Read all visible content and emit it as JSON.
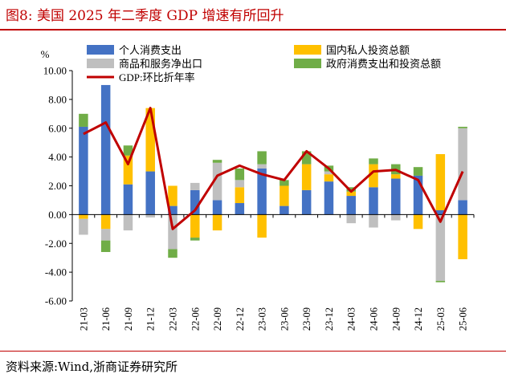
{
  "header": {
    "title": "图8:  美国 2025 年二季度 GDP 增速有所回升"
  },
  "footer": {
    "source": "资料来源:Wind,浙商证券研究所"
  },
  "colors": {
    "consumption": "#4472c4",
    "investment": "#ffc000",
    "net_exports": "#bfbfbf",
    "government": "#70ad47",
    "gdp_line": "#c00000"
  },
  "chart_data": {
    "type": "bar",
    "stacked": true,
    "ylabel": "%",
    "ylim": [
      -6,
      10
    ],
    "yticks": [
      "10.00",
      "8.00",
      "6.00",
      "4.00",
      "2.00",
      "0.00",
      "-2.00",
      "-4.00",
      "-6.00"
    ],
    "categories": [
      "21-03",
      "21-06",
      "21-09",
      "21-12",
      "22-03",
      "22-06",
      "22-09",
      "22-12",
      "23-03",
      "23-06",
      "23-09",
      "23-12",
      "24-03",
      "24-06",
      "24-09",
      "24-12",
      "25-03",
      "25-06"
    ],
    "series": [
      {
        "name": "个人消费支出",
        "type": "bar",
        "color_key": "consumption",
        "values": [
          6.1,
          9.0,
          2.1,
          3.0,
          0.6,
          1.7,
          1.0,
          0.8,
          3.2,
          0.6,
          1.7,
          2.3,
          1.3,
          1.9,
          2.5,
          2.7,
          0.3,
          1.0
        ]
      },
      {
        "name": "国内私人投资总额",
        "type": "bar",
        "color_key": "investment",
        "values": [
          -0.3,
          -1.0,
          2.0,
          4.4,
          1.4,
          -1.6,
          -1.1,
          1.1,
          -1.6,
          1.4,
          1.8,
          0.5,
          0.3,
          1.6,
          0.3,
          -1.0,
          3.9,
          -3.1
        ]
      },
      {
        "name": "商品和服务净出口",
        "type": "bar",
        "color_key": "net_exports",
        "values": [
          -1.1,
          -0.8,
          -1.1,
          -0.2,
          -2.4,
          0.5,
          2.6,
          0.5,
          0.3,
          0.0,
          0.0,
          0.2,
          -0.6,
          -0.9,
          -0.4,
          0.0,
          -4.6,
          5.0
        ]
      },
      {
        "name": "政府消费支出和投资总额",
        "type": "bar",
        "color_key": "government",
        "values": [
          0.9,
          -0.8,
          0.7,
          0.0,
          -0.6,
          -0.2,
          0.2,
          0.8,
          0.9,
          0.4,
          0.9,
          0.4,
          0.3,
          0.4,
          0.7,
          0.6,
          -0.1,
          0.1
        ]
      },
      {
        "name": "GDP:环比折年率",
        "type": "line",
        "color_key": "gdp_line",
        "values": [
          5.6,
          6.4,
          3.5,
          7.4,
          -1.0,
          0.3,
          2.7,
          3.4,
          2.8,
          2.4,
          4.4,
          3.2,
          1.6,
          3.0,
          3.1,
          2.4,
          -0.5,
          3.0
        ]
      }
    ],
    "legend": {
      "placement": "top",
      "items": [
        "个人消费支出",
        "国内私人投资总额",
        "商品和服务净出口",
        "政府消费支出和投资总额",
        "GDP:环比折年率"
      ]
    },
    "grid": false
  }
}
